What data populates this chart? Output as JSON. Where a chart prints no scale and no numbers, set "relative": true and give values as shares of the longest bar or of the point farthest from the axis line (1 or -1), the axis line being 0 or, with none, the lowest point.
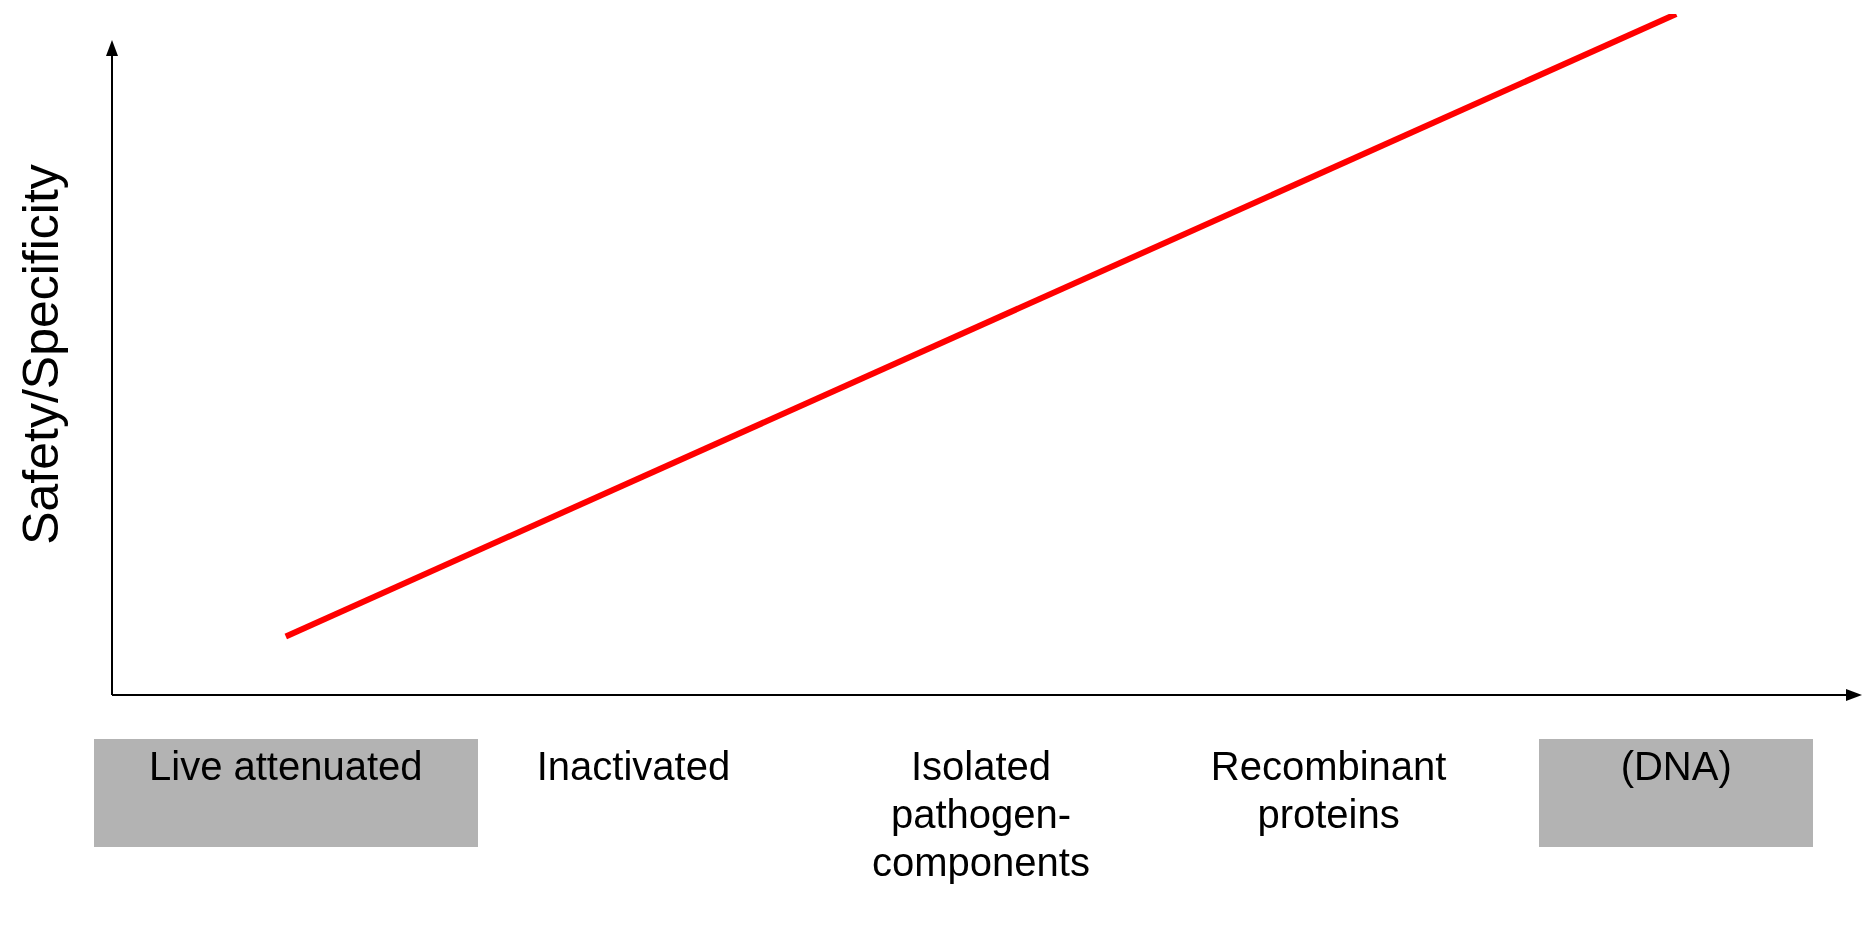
{
  "chart_data": {
    "type": "line",
    "ylabel": "Safety/Specificity",
    "relative": true,
    "categories": [
      "Live attenuated",
      "Inactivated",
      "Isolated pathogen-components",
      "Recombinant proteins",
      "(DNA)"
    ],
    "series": [
      {
        "color": "#ff0000",
        "values": [
          0.086,
          null,
          null,
          null,
          1
        ]
      }
    ],
    "legend": false,
    "grid": false,
    "marker": "none",
    "line_style": "solid"
  }
}
